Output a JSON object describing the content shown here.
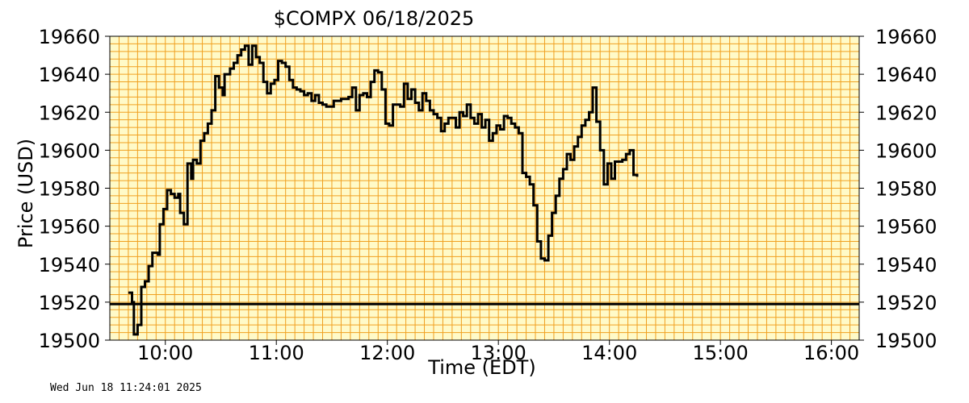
{
  "chart_data": {
    "type": "line",
    "title": "$COMPX  06/18/2025",
    "xlabel": "Time (EDT)",
    "ylabel": "Price (USD)",
    "ylim": [
      19500,
      19660
    ],
    "yticks": [
      19500,
      19520,
      19540,
      19560,
      19580,
      19600,
      19620,
      19640,
      19660
    ],
    "xlim": [
      "09:30",
      "16:15"
    ],
    "xticks": [
      {
        "t": "10:00",
        "label": "10:00"
      },
      {
        "t": "11:00",
        "label": "11:00"
      },
      {
        "t": "12:00",
        "label": "12:00"
      },
      {
        "t": "13:00",
        "label": "13:00"
      },
      {
        "t": "14:00",
        "label": "14:00"
      },
      {
        "t": "15:00",
        "label": "15:00"
      },
      {
        "t": "16:00",
        "label": "16:00"
      }
    ],
    "grid": true,
    "reference_line": 19519,
    "colors": {
      "background": "#fffac8",
      "grid": "#f0a020",
      "line": "#000000"
    },
    "series": [
      {
        "step": true,
        "points": [
          [
            "09:40",
            19525
          ],
          [
            "09:42",
            19520
          ],
          [
            "09:43",
            19503
          ],
          [
            "09:45",
            19508
          ],
          [
            "09:47",
            19528
          ],
          [
            "09:49",
            19531
          ],
          [
            "09:51",
            19539
          ],
          [
            "09:53",
            19546
          ],
          [
            "09:56",
            19545
          ],
          [
            "09:57",
            19561
          ],
          [
            "09:59",
            19569
          ],
          [
            "10:01",
            19579
          ],
          [
            "10:03",
            19577
          ],
          [
            "10:05",
            19575
          ],
          [
            "10:07",
            19577
          ],
          [
            "10:08",
            19567
          ],
          [
            "10:10",
            19561
          ],
          [
            "10:12",
            19593
          ],
          [
            "10:14",
            19585
          ],
          [
            "10:15",
            19595
          ],
          [
            "10:17",
            19593
          ],
          [
            "10:19",
            19605
          ],
          [
            "10:21",
            19609
          ],
          [
            "10:23",
            19614
          ],
          [
            "10:25",
            19621
          ],
          [
            "10:27",
            19639
          ],
          [
            "10:29",
            19633
          ],
          [
            "10:31",
            19629
          ],
          [
            "10:32",
            19640
          ],
          [
            "10:35",
            19643
          ],
          [
            "10:37",
            19646
          ],
          [
            "10:39",
            19650
          ],
          [
            "10:41",
            19653
          ],
          [
            "10:43",
            19655
          ],
          [
            "10:45",
            19645
          ],
          [
            "10:47",
            19655
          ],
          [
            "10:49",
            19649
          ],
          [
            "10:51",
            19646
          ],
          [
            "10:53",
            19636
          ],
          [
            "10:55",
            19630
          ],
          [
            "10:57",
            19635
          ],
          [
            "10:59",
            19637
          ],
          [
            "11:01",
            19647
          ],
          [
            "11:03",
            19646
          ],
          [
            "11:05",
            19644
          ],
          [
            "11:07",
            19637
          ],
          [
            "11:09",
            19633
          ],
          [
            "11:11",
            19632
          ],
          [
            "11:13",
            19631
          ],
          [
            "11:15",
            19629
          ],
          [
            "11:17",
            19630
          ],
          [
            "11:19",
            19626
          ],
          [
            "11:21",
            19629
          ],
          [
            "11:23",
            19625
          ],
          [
            "11:25",
            19624
          ],
          [
            "11:27",
            19623
          ],
          [
            "11:31",
            19626
          ],
          [
            "11:35",
            19627
          ],
          [
            "11:39",
            19628
          ],
          [
            "11:41",
            19633
          ],
          [
            "11:43",
            19621
          ],
          [
            "11:45",
            19629
          ],
          [
            "11:47",
            19630
          ],
          [
            "11:49",
            19628
          ],
          [
            "11:51",
            19636
          ],
          [
            "11:53",
            19642
          ],
          [
            "11:55",
            19641
          ],
          [
            "11:57",
            19632
          ],
          [
            "11:59",
            19614
          ],
          [
            "12:01",
            19613
          ],
          [
            "12:03",
            19624
          ],
          [
            "12:07",
            19623
          ],
          [
            "12:09",
            19635
          ],
          [
            "12:11",
            19627
          ],
          [
            "12:13",
            19632
          ],
          [
            "12:15",
            19625
          ],
          [
            "12:17",
            19621
          ],
          [
            "12:19",
            19630
          ],
          [
            "12:21",
            19626
          ],
          [
            "12:23",
            19621
          ],
          [
            "12:25",
            19619
          ],
          [
            "12:27",
            19617
          ],
          [
            "12:29",
            19610
          ],
          [
            "12:31",
            19614
          ],
          [
            "12:33",
            19617
          ],
          [
            "12:37",
            19612
          ],
          [
            "12:39",
            19620
          ],
          [
            "12:41",
            19618
          ],
          [
            "12:43",
            19624
          ],
          [
            "12:45",
            19617
          ],
          [
            "12:47",
            19614
          ],
          [
            "12:49",
            19619
          ],
          [
            "12:51",
            19612
          ],
          [
            "12:53",
            19616
          ],
          [
            "12:55",
            19605
          ],
          [
            "12:57",
            19609
          ],
          [
            "12:59",
            19613
          ],
          [
            "13:01",
            19611
          ],
          [
            "13:03",
            19618
          ],
          [
            "13:05",
            19617
          ],
          [
            "13:07",
            19614
          ],
          [
            "13:09",
            19612
          ],
          [
            "13:11",
            19609
          ],
          [
            "13:13",
            19588
          ],
          [
            "13:15",
            19586
          ],
          [
            "13:17",
            19582
          ],
          [
            "13:19",
            19571
          ],
          [
            "13:21",
            19552
          ],
          [
            "13:23",
            19543
          ],
          [
            "13:25",
            19542
          ],
          [
            "13:27",
            19555
          ],
          [
            "13:29",
            19567
          ],
          [
            "13:31",
            19576
          ],
          [
            "13:33",
            19585
          ],
          [
            "13:35",
            19590
          ],
          [
            "13:37",
            19598
          ],
          [
            "13:39",
            19595
          ],
          [
            "13:41",
            19602
          ],
          [
            "13:43",
            19607
          ],
          [
            "13:45",
            19613
          ],
          [
            "13:47",
            19616
          ],
          [
            "13:49",
            19620
          ],
          [
            "13:51",
            19633
          ],
          [
            "13:53",
            19615
          ],
          [
            "13:55",
            19600
          ],
          [
            "13:57",
            19582
          ],
          [
            "13:59",
            19593
          ],
          [
            "14:01",
            19585
          ],
          [
            "14:03",
            19594
          ],
          [
            "14:07",
            19595
          ],
          [
            "14:09",
            19598
          ],
          [
            "14:11",
            19600
          ],
          [
            "14:13",
            19587
          ],
          [
            "14:15",
            19586
          ]
        ]
      }
    ],
    "timestamp_label": "Wed Jun 18 11:24:01 2025"
  }
}
